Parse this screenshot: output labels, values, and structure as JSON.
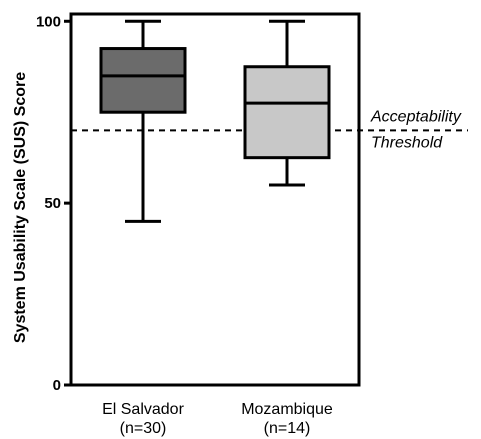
{
  "chart_data": {
    "type": "box",
    "title": "",
    "xlabel": "",
    "ylabel": "System Usability Scale (SUS) Score",
    "ylim": [
      0,
      102
    ],
    "y_ticks": [
      0,
      50,
      100
    ],
    "y_tick_labels": [
      "0",
      "50",
      "100"
    ],
    "grid": false,
    "legend": "none",
    "boxes": [
      {
        "category_line1": "El Salvador",
        "category_line2": "(n=30)",
        "min": 45,
        "q1": 75,
        "median": 85,
        "q3": 92.5,
        "max": 100,
        "fill_color": "#6b6b6b"
      },
      {
        "category_line1": "Mozambique",
        "category_line2": "(n=14)",
        "min": 55,
        "q1": 62.5,
        "median": 77.5,
        "q3": 87.5,
        "max": 100,
        "fill_color": "#c8c8c8"
      }
    ],
    "reference_line": {
      "value": 70,
      "style": "dashed",
      "label_line1": "Acceptability",
      "label_line2": "Threshold"
    }
  }
}
